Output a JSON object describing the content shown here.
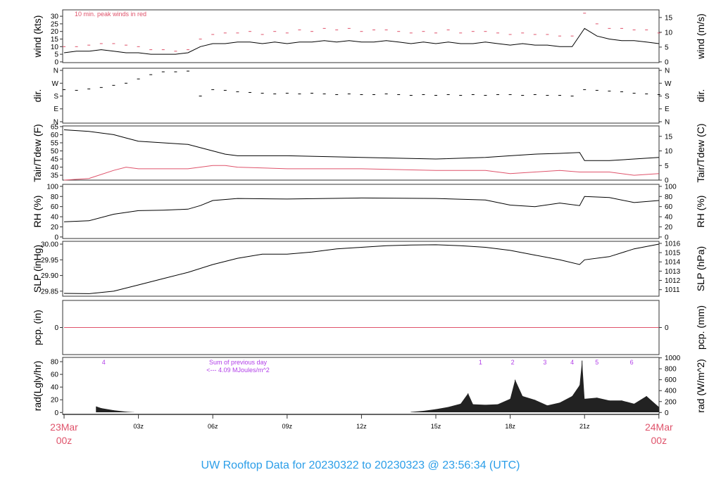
{
  "title": "UW Rooftop Data for 20230322  to  20230323 @ 23:56:34  (UTC)",
  "colors": {
    "title": "#2b9ee8",
    "date": "#df536b",
    "gust": "#df536b",
    "dew": "#df536b",
    "pcp": "#df536b",
    "annot": "#b13ee8",
    "line": "#000000"
  },
  "xaxis": {
    "ticks": [
      {
        "h": 0,
        "label": "23Mar",
        "sub": "00z",
        "major": true
      },
      {
        "h": 3,
        "label": "03z"
      },
      {
        "h": 6,
        "label": "06z"
      },
      {
        "h": 9,
        "label": "09z"
      },
      {
        "h": 12,
        "label": "12z"
      },
      {
        "h": 15,
        "label": "15z"
      },
      {
        "h": 18,
        "label": "18z"
      },
      {
        "h": 21,
        "label": "21z"
      },
      {
        "h": 24,
        "label": "24Mar",
        "sub": "00z",
        "major": true
      }
    ]
  },
  "chart_data": [
    {
      "id": "wind",
      "type": "line",
      "ylabel": "wind (kts)",
      "ylabel_right": "wind (m/s)",
      "ylim": [
        -0.5,
        34.2
      ],
      "yticks": [
        0,
        5,
        10,
        15,
        20,
        25,
        30
      ],
      "yticks_right": [
        0,
        5,
        10,
        15
      ],
      "annotation": "10 min. peak winds in red",
      "x": [
        0,
        0.5,
        1,
        1.5,
        2,
        2.5,
        3,
        3.5,
        4,
        4.5,
        5,
        5.5,
        6,
        6.5,
        7,
        7.5,
        8,
        8.5,
        9,
        9.5,
        10,
        10.5,
        11,
        11.5,
        12,
        12.5,
        13,
        13.5,
        14,
        14.5,
        15,
        15.5,
        16,
        16.5,
        17,
        17.5,
        18,
        18.5,
        19,
        19.5,
        20,
        20.5,
        21,
        21.5,
        22,
        22.5,
        23,
        23.5,
        24
      ],
      "series": [
        {
          "name": "wind",
          "values": [
            6,
            7,
            7,
            8,
            7,
            6,
            6,
            5,
            5,
            5,
            6,
            10,
            12,
            12,
            13,
            13,
            12,
            13,
            12,
            13,
            13,
            14,
            13,
            14,
            13,
            13,
            14,
            13,
            12,
            13,
            12,
            13,
            12,
            12,
            13,
            12,
            11,
            12,
            11,
            11,
            10,
            10,
            22,
            17,
            15,
            14,
            14,
            13,
            12
          ]
        },
        {
          "name": "peak",
          "values": [
            10,
            10,
            11,
            12,
            12,
            11,
            10,
            8,
            8,
            7,
            8,
            15,
            18,
            19,
            19,
            20,
            18,
            20,
            19,
            21,
            20,
            22,
            21,
            22,
            20,
            21,
            21,
            20,
            19,
            20,
            19,
            21,
            19,
            20,
            20,
            19,
            18,
            19,
            18,
            18,
            17,
            17,
            32,
            25,
            22,
            22,
            21,
            21,
            19
          ]
        }
      ]
    },
    {
      "id": "dir",
      "type": "scatter",
      "ylabel": "dir.",
      "ylabel_right": "dir.",
      "ylim": [
        -10,
        375
      ],
      "yticks": [
        {
          "v": 0,
          "l": "N"
        },
        {
          "v": 90,
          "l": "E"
        },
        {
          "v": 180,
          "l": "S"
        },
        {
          "v": 270,
          "l": "W"
        },
        {
          "v": 360,
          "l": "N"
        }
      ],
      "x": [
        0,
        0.5,
        1,
        1.5,
        2,
        2.5,
        3,
        3.5,
        4,
        4.5,
        5,
        5.5,
        6,
        6.5,
        7,
        7.5,
        8,
        8.5,
        9,
        9.5,
        10,
        10.5,
        11,
        11.5,
        12,
        12.5,
        13,
        13.5,
        14,
        14.5,
        15,
        15.5,
        16,
        16.5,
        17,
        17.5,
        18,
        18.5,
        19,
        19.5,
        20,
        20.5,
        21,
        21.5,
        22,
        22.5,
        23,
        23.5,
        24
      ],
      "values": [
        225,
        220,
        230,
        240,
        255,
        270,
        300,
        330,
        350,
        350,
        355,
        180,
        225,
        220,
        210,
        205,
        200,
        195,
        200,
        195,
        200,
        195,
        190,
        195,
        190,
        190,
        195,
        190,
        185,
        190,
        185,
        190,
        185,
        190,
        185,
        190,
        190,
        185,
        190,
        185,
        185,
        180,
        225,
        220,
        215,
        210,
        200,
        195,
        190
      ]
    },
    {
      "id": "temp",
      "type": "line",
      "ylabel": "Tair/Tdew (F)",
      "ylabel_right": "Tair/Tdew (C)",
      "ylim": [
        32,
        65.4
      ],
      "yticks": [
        35,
        40,
        45,
        50,
        55,
        60,
        65
      ],
      "yticks_right": [
        0,
        5,
        10,
        15
      ],
      "x": [
        0,
        1,
        2,
        2.5,
        3,
        4,
        5,
        6,
        6.5,
        7,
        9,
        12,
        15,
        17,
        18,
        19,
        20,
        20.8,
        21,
        22,
        23,
        24
      ],
      "series": [
        {
          "name": "Tair",
          "values": [
            63,
            62,
            60,
            58,
            56,
            55,
            54,
            50,
            48,
            47,
            47,
            46,
            45,
            46,
            47,
            48,
            48.5,
            49,
            44,
            44,
            45,
            46
          ]
        },
        {
          "name": "Tdew",
          "values": [
            32,
            33,
            38,
            40,
            39,
            39,
            39,
            41,
            41,
            40,
            39,
            39,
            38,
            38,
            36,
            37,
            38,
            37,
            37,
            37,
            35,
            36
          ]
        }
      ]
    },
    {
      "id": "rh",
      "type": "line",
      "ylabel": "RH (%)",
      "ylabel_right": "RH (%)",
      "ylim": [
        -3,
        104
      ],
      "yticks": [
        0,
        20,
        40,
        60,
        80,
        100
      ],
      "yticks_right": [
        0,
        20,
        40,
        60,
        80,
        100
      ],
      "x": [
        0,
        1,
        2,
        3,
        4,
        5,
        5.5,
        6,
        7,
        9,
        12,
        15,
        17,
        18,
        19,
        20,
        20.8,
        21,
        22,
        23,
        24
      ],
      "values": [
        30,
        32,
        45,
        52,
        53,
        55,
        62,
        72,
        76,
        75,
        77,
        76,
        73,
        63,
        60,
        67,
        62,
        80,
        78,
        68,
        72
      ]
    },
    {
      "id": "slp",
      "type": "line",
      "ylabel": "SLP (inHg)",
      "ylabel_right": "SLP (hPa)",
      "ylim": [
        29.834,
        30.009
      ],
      "yticks": [
        29.85,
        29.9,
        29.95,
        30.0
      ],
      "yticks_right": [
        1011,
        1012,
        1013,
        1014,
        1015,
        1016
      ],
      "x": [
        0,
        1,
        2,
        3,
        4,
        5,
        6,
        7,
        8,
        9,
        10,
        11,
        12,
        13,
        14,
        15,
        16,
        17,
        18,
        19,
        20,
        20.8,
        21,
        22,
        23,
        24
      ],
      "values": [
        29.843,
        29.842,
        29.85,
        29.87,
        29.89,
        29.91,
        29.935,
        29.955,
        29.968,
        29.968,
        29.975,
        29.985,
        29.99,
        29.995,
        29.997,
        29.998,
        29.995,
        29.99,
        29.98,
        29.965,
        29.95,
        29.935,
        29.95,
        29.96,
        29.985,
        30.0
      ]
    },
    {
      "id": "pcp",
      "type": "line",
      "ylabel": "pcp. (in)",
      "ylabel_right": "pcp. (mm)",
      "ylim": [
        -1,
        1
      ],
      "yticks": [
        0
      ],
      "yticks_right": [
        0
      ],
      "x": [
        0,
        24
      ],
      "values": [
        0,
        0
      ]
    },
    {
      "id": "rad",
      "type": "bar",
      "ylabel": "rad(Lgly/hr)",
      "ylabel_right": "rad (W/m^2)",
      "ylim": [
        -3,
        86.7
      ],
      "yticks": [
        0,
        20,
        40,
        60,
        80
      ],
      "yticks_right": [
        0,
        200,
        400,
        600,
        800,
        1000
      ],
      "note_line1": "Sum of previous day",
      "note_line2": "<--- 4.09 MJoules/m^2",
      "hour_labels": [
        {
          "h": 1.6,
          "l": "4"
        },
        {
          "h": 16.8,
          "l": "1"
        },
        {
          "h": 18.1,
          "l": "2"
        },
        {
          "h": 19.4,
          "l": "3"
        },
        {
          "h": 20.5,
          "l": "4"
        },
        {
          "h": 21.5,
          "l": "5"
        },
        {
          "h": 22.9,
          "l": "6"
        }
      ],
      "x": [
        1.3,
        1.5,
        2,
        2.5,
        2.8,
        3,
        14,
        14.5,
        15,
        15.5,
        16,
        16.3,
        16.5,
        17,
        17.5,
        18,
        18.2,
        18.5,
        19,
        19.5,
        20,
        20.5,
        20.8,
        20.9,
        21,
        21.5,
        22,
        22.5,
        23,
        23.5,
        24
      ],
      "values_wm2": [
        110,
        80,
        40,
        15,
        5,
        0,
        10,
        30,
        60,
        100,
        160,
        350,
        150,
        140,
        150,
        250,
        600,
        300,
        230,
        130,
        180,
        300,
        500,
        950,
        250,
        270,
        220,
        220,
        160,
        300,
        100
      ]
    }
  ]
}
